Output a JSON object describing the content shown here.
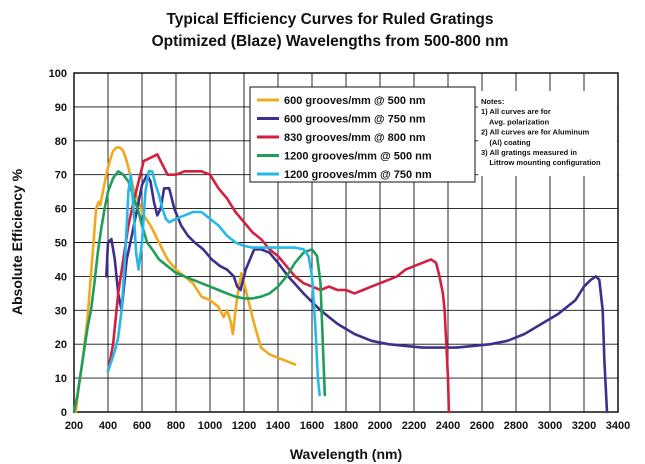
{
  "chart_data": {
    "type": "line",
    "title": "Typical Efficiency Curves  for Ruled Gratings",
    "subtitle": "Optimized (Blaze) Wavelengths from 500-800 nm",
    "xlabel": "Wavelength (nm)",
    "ylabel": "Absolute Efficiency %",
    "xlim": [
      200,
      3400
    ],
    "ylim": [
      0,
      100
    ],
    "xticks": [
      200,
      400,
      600,
      800,
      1000,
      1200,
      1400,
      1600,
      1800,
      2000,
      2200,
      2400,
      2600,
      2800,
      3000,
      3200,
      3400
    ],
    "yticks": [
      0,
      10,
      20,
      30,
      40,
      50,
      60,
      70,
      80,
      90,
      100
    ],
    "grid": true,
    "legend_position": "top-right",
    "series": [
      {
        "name": "600 grooves/mm  @ 500 nm",
        "color": "#f0a81e",
        "points": [
          [
            210,
            0
          ],
          [
            230,
            8
          ],
          [
            250,
            15
          ],
          [
            280,
            28
          ],
          [
            310,
            47
          ],
          [
            330,
            60
          ],
          [
            345,
            62
          ],
          [
            355,
            61
          ],
          [
            370,
            65
          ],
          [
            390,
            70
          ],
          [
            410,
            74
          ],
          [
            430,
            77
          ],
          [
            450,
            78
          ],
          [
            470,
            78
          ],
          [
            490,
            77
          ],
          [
            510,
            74
          ],
          [
            530,
            70
          ],
          [
            550,
            66
          ],
          [
            580,
            62
          ],
          [
            610,
            58
          ],
          [
            650,
            55
          ],
          [
            700,
            50
          ],
          [
            750,
            45
          ],
          [
            800,
            42
          ],
          [
            850,
            40
          ],
          [
            900,
            38
          ],
          [
            950,
            34
          ],
          [
            1000,
            33
          ],
          [
            1050,
            31
          ],
          [
            1080,
            28
          ],
          [
            1100,
            30
          ],
          [
            1120,
            27
          ],
          [
            1135,
            23
          ],
          [
            1150,
            30
          ],
          [
            1170,
            37
          ],
          [
            1185,
            41
          ],
          [
            1200,
            38
          ],
          [
            1230,
            32
          ],
          [
            1260,
            26
          ],
          [
            1300,
            19
          ],
          [
            1350,
            17
          ],
          [
            1400,
            16
          ],
          [
            1450,
            15
          ],
          [
            1500,
            14
          ]
        ]
      },
      {
        "name": "600 grooves/mm  @ 750 nm",
        "color": "#3d2f8d",
        "points": [
          [
            390,
            40
          ],
          [
            400,
            50
          ],
          [
            420,
            51
          ],
          [
            440,
            45
          ],
          [
            460,
            35
          ],
          [
            480,
            30
          ],
          [
            500,
            40
          ],
          [
            510,
            45
          ],
          [
            540,
            52
          ],
          [
            560,
            57
          ],
          [
            580,
            62
          ],
          [
            600,
            67
          ],
          [
            630,
            70
          ],
          [
            650,
            68
          ],
          [
            670,
            62
          ],
          [
            690,
            58
          ],
          [
            710,
            60
          ],
          [
            730,
            66
          ],
          [
            760,
            66
          ],
          [
            790,
            60
          ],
          [
            830,
            55
          ],
          [
            870,
            52
          ],
          [
            910,
            50
          ],
          [
            960,
            48
          ],
          [
            1010,
            45
          ],
          [
            1060,
            43
          ],
          [
            1100,
            42
          ],
          [
            1140,
            40
          ],
          [
            1160,
            37
          ],
          [
            1180,
            36
          ],
          [
            1210,
            42
          ],
          [
            1260,
            48
          ],
          [
            1300,
            48
          ],
          [
            1350,
            47
          ],
          [
            1400,
            44
          ],
          [
            1460,
            40
          ],
          [
            1550,
            35
          ],
          [
            1650,
            30
          ],
          [
            1750,
            26
          ],
          [
            1850,
            23
          ],
          [
            1950,
            21
          ],
          [
            2050,
            20
          ],
          [
            2150,
            19.5
          ],
          [
            2250,
            19
          ],
          [
            2350,
            19
          ],
          [
            2450,
            19
          ],
          [
            2550,
            19.5
          ],
          [
            2650,
            20
          ],
          [
            2750,
            21
          ],
          [
            2850,
            23
          ],
          [
            2950,
            26
          ],
          [
            3050,
            29
          ],
          [
            3150,
            33
          ],
          [
            3200,
            37
          ],
          [
            3240,
            39
          ],
          [
            3270,
            40
          ],
          [
            3290,
            39
          ],
          [
            3310,
            30
          ],
          [
            3320,
            15
          ],
          [
            3335,
            0
          ]
        ]
      },
      {
        "name": "830 grooves/mm  @ 800 nm",
        "color": "#d2203e",
        "points": [
          [
            400,
            12
          ],
          [
            430,
            20
          ],
          [
            460,
            35
          ],
          [
            490,
            45
          ],
          [
            520,
            55
          ],
          [
            550,
            62
          ],
          [
            580,
            68
          ],
          [
            610,
            74
          ],
          [
            650,
            75
          ],
          [
            690,
            76
          ],
          [
            720,
            73
          ],
          [
            750,
            70
          ],
          [
            800,
            70
          ],
          [
            850,
            71
          ],
          [
            900,
            71
          ],
          [
            950,
            71
          ],
          [
            1000,
            70
          ],
          [
            1050,
            66
          ],
          [
            1100,
            63
          ],
          [
            1150,
            59
          ],
          [
            1200,
            56
          ],
          [
            1250,
            53
          ],
          [
            1300,
            51
          ],
          [
            1350,
            48
          ],
          [
            1400,
            46
          ],
          [
            1450,
            43
          ],
          [
            1500,
            40
          ],
          [
            1550,
            38
          ],
          [
            1600,
            37
          ],
          [
            1650,
            36
          ],
          [
            1700,
            37
          ],
          [
            1750,
            36
          ],
          [
            1800,
            36
          ],
          [
            1850,
            35
          ],
          [
            1900,
            36
          ],
          [
            1950,
            37
          ],
          [
            2000,
            38
          ],
          [
            2050,
            39
          ],
          [
            2100,
            40
          ],
          [
            2150,
            42
          ],
          [
            2200,
            43
          ],
          [
            2250,
            44
          ],
          [
            2300,
            45
          ],
          [
            2330,
            44
          ],
          [
            2350,
            40
          ],
          [
            2370,
            35
          ],
          [
            2380,
            30
          ],
          [
            2390,
            20
          ],
          [
            2400,
            10
          ],
          [
            2405,
            0
          ]
        ]
      },
      {
        "name": "1200 grooves/mm  @ 500 nm",
        "color": "#1e9e5a",
        "points": [
          [
            200,
            0
          ],
          [
            220,
            5
          ],
          [
            250,
            15
          ],
          [
            280,
            25
          ],
          [
            300,
            30
          ],
          [
            320,
            38
          ],
          [
            340,
            47
          ],
          [
            360,
            54
          ],
          [
            380,
            60
          ],
          [
            400,
            65
          ],
          [
            430,
            69
          ],
          [
            460,
            71
          ],
          [
            490,
            70
          ],
          [
            520,
            68
          ],
          [
            540,
            65
          ],
          [
            560,
            62
          ],
          [
            580,
            59
          ],
          [
            600,
            55
          ],
          [
            630,
            50
          ],
          [
            660,
            48
          ],
          [
            700,
            45
          ],
          [
            750,
            43
          ],
          [
            800,
            41
          ],
          [
            850,
            40
          ],
          [
            900,
            39
          ],
          [
            950,
            38
          ],
          [
            1000,
            37
          ],
          [
            1050,
            36
          ],
          [
            1100,
            35
          ],
          [
            1150,
            34
          ],
          [
            1200,
            33.5
          ],
          [
            1250,
            33.5
          ],
          [
            1300,
            34
          ],
          [
            1350,
            35
          ],
          [
            1400,
            37
          ],
          [
            1450,
            40
          ],
          [
            1500,
            44
          ],
          [
            1550,
            47
          ],
          [
            1600,
            48
          ],
          [
            1630,
            46
          ],
          [
            1650,
            38
          ],
          [
            1660,
            25
          ],
          [
            1670,
            12
          ],
          [
            1675,
            5
          ]
        ]
      },
      {
        "name": "1200 grooves/mm  @ 750 nm",
        "color": "#28b8e8",
        "points": [
          [
            400,
            12
          ],
          [
            420,
            15
          ],
          [
            440,
            18
          ],
          [
            460,
            22
          ],
          [
            480,
            30
          ],
          [
            500,
            45
          ],
          [
            510,
            55
          ],
          [
            520,
            65
          ],
          [
            535,
            70
          ],
          [
            550,
            60
          ],
          [
            565,
            47
          ],
          [
            580,
            42
          ],
          [
            600,
            50
          ],
          [
            620,
            65
          ],
          [
            640,
            71
          ],
          [
            660,
            71
          ],
          [
            680,
            67
          ],
          [
            700,
            64
          ],
          [
            720,
            60
          ],
          [
            740,
            57
          ],
          [
            760,
            56
          ],
          [
            800,
            57
          ],
          [
            850,
            58
          ],
          [
            900,
            59
          ],
          [
            950,
            59
          ],
          [
            1000,
            57
          ],
          [
            1050,
            55
          ],
          [
            1100,
            52
          ],
          [
            1150,
            50
          ],
          [
            1200,
            49
          ],
          [
            1250,
            48.5
          ],
          [
            1300,
            48.5
          ],
          [
            1400,
            48.5
          ],
          [
            1500,
            48.5
          ],
          [
            1550,
            48
          ],
          [
            1580,
            46
          ],
          [
            1600,
            40
          ],
          [
            1620,
            25
          ],
          [
            1635,
            10
          ],
          [
            1645,
            5
          ]
        ]
      }
    ],
    "notes": [
      "Notes:",
      "1) All curves are for",
      "    Avg. polarization",
      "2) All curves are for Aluminum",
      "    (Al) coating",
      "3) All gratings measured in",
      "    Littrow mounting configuration"
    ]
  }
}
